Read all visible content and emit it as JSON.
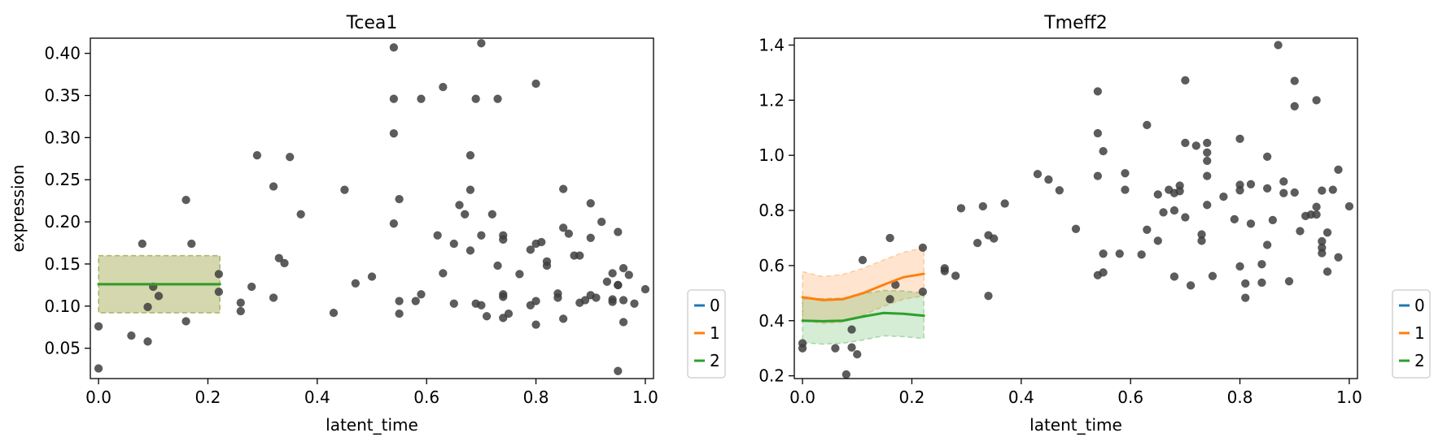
{
  "chart_data": [
    {
      "type": "scatter",
      "title": "Tcea1",
      "xlabel": "latent_time",
      "ylabel": "expression",
      "xlim": [
        -0.015,
        1.015
      ],
      "ylim": [
        0.014,
        0.418
      ],
      "xticks": [
        0.0,
        0.2,
        0.4,
        0.6,
        0.8,
        1.0
      ],
      "xtick_labels": [
        "0.0",
        "0.2",
        "0.4",
        "0.6",
        "0.8",
        "1.0"
      ],
      "yticks": [
        0.05,
        0.1,
        0.15,
        0.2,
        0.25,
        0.3,
        0.35,
        0.4
      ],
      "ytick_labels": [
        "0.05",
        "0.10",
        "0.15",
        "0.20",
        "0.25",
        "0.30",
        "0.35",
        "0.40"
      ],
      "point_color": "#404040",
      "points": [
        [
          0.0,
          0.026
        ],
        [
          0.0,
          0.076
        ],
        [
          0.06,
          0.065
        ],
        [
          0.08,
          0.174
        ],
        [
          0.09,
          0.099
        ],
        [
          0.09,
          0.058
        ],
        [
          0.1,
          0.123
        ],
        [
          0.11,
          0.112
        ],
        [
          0.16,
          0.082
        ],
        [
          0.16,
          0.226
        ],
        [
          0.17,
          0.174
        ],
        [
          0.22,
          0.117
        ],
        [
          0.22,
          0.138
        ],
        [
          0.26,
          0.104
        ],
        [
          0.26,
          0.094
        ],
        [
          0.28,
          0.123
        ],
        [
          0.29,
          0.279
        ],
        [
          0.32,
          0.11
        ],
        [
          0.32,
          0.242
        ],
        [
          0.33,
          0.157
        ],
        [
          0.34,
          0.151
        ],
        [
          0.35,
          0.277
        ],
        [
          0.37,
          0.209
        ],
        [
          0.43,
          0.092
        ],
        [
          0.45,
          0.238
        ],
        [
          0.47,
          0.127
        ],
        [
          0.5,
          0.135
        ],
        [
          0.54,
          0.407
        ],
        [
          0.54,
          0.346
        ],
        [
          0.54,
          0.305
        ],
        [
          0.54,
          0.198
        ],
        [
          0.55,
          0.106
        ],
        [
          0.55,
          0.091
        ],
        [
          0.55,
          0.227
        ],
        [
          0.58,
          0.106
        ],
        [
          0.59,
          0.114
        ],
        [
          0.59,
          0.346
        ],
        [
          0.62,
          0.184
        ],
        [
          0.63,
          0.139
        ],
        [
          0.63,
          0.36
        ],
        [
          0.65,
          0.174
        ],
        [
          0.65,
          0.103
        ],
        [
          0.66,
          0.22
        ],
        [
          0.67,
          0.209
        ],
        [
          0.68,
          0.279
        ],
        [
          0.68,
          0.238
        ],
        [
          0.68,
          0.166
        ],
        [
          0.69,
          0.103
        ],
        [
          0.69,
          0.346
        ],
        [
          0.7,
          0.412
        ],
        [
          0.7,
          0.101
        ],
        [
          0.7,
          0.184
        ],
        [
          0.71,
          0.088
        ],
        [
          0.72,
          0.209
        ],
        [
          0.73,
          0.346
        ],
        [
          0.73,
          0.148
        ],
        [
          0.74,
          0.184
        ],
        [
          0.74,
          0.179
        ],
        [
          0.74,
          0.114
        ],
        [
          0.74,
          0.111
        ],
        [
          0.74,
          0.086
        ],
        [
          0.75,
          0.091
        ],
        [
          0.77,
          0.138
        ],
        [
          0.79,
          0.101
        ],
        [
          0.79,
          0.167
        ],
        [
          0.8,
          0.364
        ],
        [
          0.8,
          0.078
        ],
        [
          0.8,
          0.106
        ],
        [
          0.8,
          0.174
        ],
        [
          0.81,
          0.176
        ],
        [
          0.82,
          0.148
        ],
        [
          0.82,
          0.153
        ],
        [
          0.84,
          0.115
        ],
        [
          0.84,
          0.11
        ],
        [
          0.85,
          0.239
        ],
        [
          0.85,
          0.193
        ],
        [
          0.85,
          0.085
        ],
        [
          0.86,
          0.186
        ],
        [
          0.87,
          0.16
        ],
        [
          0.88,
          0.104
        ],
        [
          0.88,
          0.16
        ],
        [
          0.89,
          0.107
        ],
        [
          0.9,
          0.113
        ],
        [
          0.9,
          0.222
        ],
        [
          0.9,
          0.181
        ],
        [
          0.91,
          0.11
        ],
        [
          0.92,
          0.2
        ],
        [
          0.93,
          0.129
        ],
        [
          0.94,
          0.139
        ],
        [
          0.94,
          0.108
        ],
        [
          0.94,
          0.105
        ],
        [
          0.95,
          0.188
        ],
        [
          0.95,
          0.125
        ],
        [
          0.95,
          0.125
        ],
        [
          0.95,
          0.023
        ],
        [
          0.96,
          0.081
        ],
        [
          0.96,
          0.145
        ],
        [
          0.96,
          0.107
        ],
        [
          0.97,
          0.137
        ],
        [
          0.98,
          0.103
        ],
        [
          1.0,
          0.12
        ]
      ],
      "series": [
        {
          "name": "0",
          "color": "#1f77b4",
          "x": [],
          "y": [],
          "lower": [],
          "upper": []
        },
        {
          "name": "1",
          "color": "#ff7f0e",
          "x": [
            0.0,
            0.037,
            0.074,
            0.111,
            0.148,
            0.185,
            0.222
          ],
          "y": [
            0.126,
            0.126,
            0.126,
            0.126,
            0.126,
            0.126,
            0.126
          ],
          "lower": [
            0.092,
            0.092,
            0.092,
            0.092,
            0.092,
            0.092,
            0.092
          ],
          "upper": [
            0.16,
            0.16,
            0.16,
            0.16,
            0.16,
            0.16,
            0.16
          ]
        },
        {
          "name": "2",
          "color": "#2ca02c",
          "x": [
            0.0,
            0.037,
            0.074,
            0.111,
            0.148,
            0.185,
            0.222
          ],
          "y": [
            0.126,
            0.126,
            0.126,
            0.126,
            0.126,
            0.126,
            0.126
          ],
          "lower": [
            0.092,
            0.092,
            0.092,
            0.092,
            0.092,
            0.092,
            0.092
          ],
          "upper": [
            0.16,
            0.16,
            0.16,
            0.16,
            0.16,
            0.16,
            0.16
          ]
        }
      ],
      "legend": {
        "position": "outside-right-bottom",
        "entries": [
          "0",
          "1",
          "2"
        ]
      }
    },
    {
      "type": "scatter",
      "title": "Tmeff2",
      "xlabel": "latent_time",
      "ylabel": "",
      "xlim": [
        -0.015,
        1.015
      ],
      "ylim": [
        0.19,
        1.425
      ],
      "xticks": [
        0.0,
        0.2,
        0.4,
        0.6,
        0.8,
        1.0
      ],
      "xtick_labels": [
        "0.0",
        "0.2",
        "0.4",
        "0.6",
        "0.8",
        "1.0"
      ],
      "yticks": [
        0.2,
        0.4,
        0.6,
        0.8,
        1.0,
        1.2,
        1.4
      ],
      "ytick_labels": [
        "0.2",
        "0.4",
        "0.6",
        "0.8",
        "1.0",
        "1.2",
        "1.4"
      ],
      "point_color": "#404040",
      "points": [
        [
          0.0,
          0.318
        ],
        [
          0.0,
          0.3
        ],
        [
          0.06,
          0.3
        ],
        [
          0.08,
          0.205
        ],
        [
          0.09,
          0.368
        ],
        [
          0.09,
          0.303
        ],
        [
          0.1,
          0.278
        ],
        [
          0.11,
          0.62
        ],
        [
          0.16,
          0.7
        ],
        [
          0.16,
          0.478
        ],
        [
          0.17,
          0.53
        ],
        [
          0.22,
          0.505
        ],
        [
          0.22,
          0.665
        ],
        [
          0.26,
          0.58
        ],
        [
          0.26,
          0.59
        ],
        [
          0.28,
          0.563
        ],
        [
          0.29,
          0.808
        ],
        [
          0.32,
          0.682
        ],
        [
          0.33,
          0.815
        ],
        [
          0.34,
          0.71
        ],
        [
          0.34,
          0.49
        ],
        [
          0.35,
          0.698
        ],
        [
          0.37,
          0.825
        ],
        [
          0.43,
          0.932
        ],
        [
          0.45,
          0.912
        ],
        [
          0.47,
          0.873
        ],
        [
          0.5,
          0.733
        ],
        [
          0.54,
          1.08
        ],
        [
          0.54,
          0.925
        ],
        [
          0.54,
          0.565
        ],
        [
          0.54,
          1.232
        ],
        [
          0.55,
          1.015
        ],
        [
          0.55,
          0.643
        ],
        [
          0.55,
          0.575
        ],
        [
          0.58,
          0.643
        ],
        [
          0.59,
          0.935
        ],
        [
          0.59,
          0.875
        ],
        [
          0.62,
          0.64
        ],
        [
          0.63,
          0.73
        ],
        [
          0.63,
          1.11
        ],
        [
          0.65,
          0.858
        ],
        [
          0.65,
          0.69
        ],
        [
          0.66,
          0.793
        ],
        [
          0.67,
          0.875
        ],
        [
          0.68,
          0.56
        ],
        [
          0.68,
          0.863
        ],
        [
          0.68,
          0.8
        ],
        [
          0.69,
          0.89
        ],
        [
          0.69,
          0.87
        ],
        [
          0.7,
          1.272
        ],
        [
          0.7,
          0.775
        ],
        [
          0.7,
          1.045
        ],
        [
          0.71,
          0.528
        ],
        [
          0.72,
          1.035
        ],
        [
          0.73,
          0.713
        ],
        [
          0.73,
          0.69
        ],
        [
          0.74,
          1.045
        ],
        [
          0.74,
          1.01
        ],
        [
          0.74,
          0.98
        ],
        [
          0.74,
          0.925
        ],
        [
          0.74,
          0.82
        ],
        [
          0.75,
          0.562
        ],
        [
          0.77,
          0.85
        ],
        [
          0.79,
          0.768
        ],
        [
          0.8,
          1.06
        ],
        [
          0.8,
          0.893
        ],
        [
          0.8,
          0.873
        ],
        [
          0.8,
          0.597
        ],
        [
          0.81,
          0.535
        ],
        [
          0.81,
          0.483
        ],
        [
          0.82,
          0.752
        ],
        [
          0.82,
          0.895
        ],
        [
          0.84,
          0.605
        ],
        [
          0.84,
          0.538
        ],
        [
          0.85,
          0.995
        ],
        [
          0.85,
          0.88
        ],
        [
          0.85,
          0.675
        ],
        [
          0.86,
          0.765
        ],
        [
          0.87,
          1.4
        ],
        [
          0.88,
          0.863
        ],
        [
          0.88,
          0.905
        ],
        [
          0.89,
          0.543
        ],
        [
          0.9,
          1.178
        ],
        [
          0.9,
          1.27
        ],
        [
          0.9,
          0.865
        ],
        [
          0.91,
          0.725
        ],
        [
          0.92,
          0.78
        ],
        [
          0.93,
          0.785
        ],
        [
          0.94,
          0.785
        ],
        [
          0.94,
          1.2
        ],
        [
          0.94,
          0.813
        ],
        [
          0.95,
          0.688
        ],
        [
          0.95,
          0.665
        ],
        [
          0.95,
          0.645
        ],
        [
          0.95,
          0.872
        ],
        [
          0.96,
          0.578
        ],
        [
          0.96,
          0.72
        ],
        [
          0.97,
          0.875
        ],
        [
          0.98,
          0.948
        ],
        [
          0.98,
          0.63
        ],
        [
          1.0,
          0.815
        ]
      ],
      "series": [
        {
          "name": "0",
          "color": "#1f77b4",
          "x": [],
          "y": [],
          "lower": [],
          "upper": []
        },
        {
          "name": "1",
          "color": "#ff7f0e",
          "x": [
            0.0,
            0.037,
            0.074,
            0.111,
            0.148,
            0.185,
            0.222
          ],
          "y": [
            0.485,
            0.475,
            0.478,
            0.5,
            0.53,
            0.558,
            0.57
          ],
          "lower": [
            0.402,
            0.39,
            0.395,
            0.42,
            0.452,
            0.478,
            0.49
          ],
          "upper": [
            0.578,
            0.56,
            0.568,
            0.59,
            0.62,
            0.648,
            0.665
          ]
        },
        {
          "name": "2",
          "color": "#2ca02c",
          "x": [
            0.0,
            0.037,
            0.074,
            0.111,
            0.148,
            0.185,
            0.222
          ],
          "y": [
            0.4,
            0.398,
            0.4,
            0.415,
            0.428,
            0.425,
            0.418
          ],
          "lower": [
            0.32,
            0.315,
            0.318,
            0.33,
            0.345,
            0.342,
            0.335
          ],
          "upper": [
            0.48,
            0.48,
            0.482,
            0.498,
            0.51,
            0.508,
            0.5
          ]
        }
      ],
      "legend": {
        "position": "outside-right-bottom",
        "entries": [
          "0",
          "1",
          "2"
        ]
      }
    }
  ]
}
